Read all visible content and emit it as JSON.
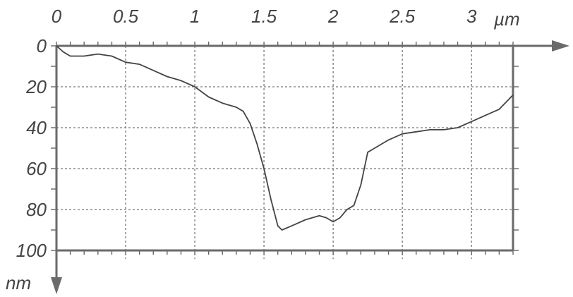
{
  "chart_data": {
    "type": "line",
    "title": "",
    "x_unit": "µm",
    "y_unit": "nm",
    "xlim": [
      0,
      3.3
    ],
    "ylim": [
      0,
      100
    ],
    "y_inverted": true,
    "x_tick_labels": [
      "0",
      "0.5",
      "1",
      "1.5",
      "2",
      "2.5",
      "3"
    ],
    "x_ticks": [
      0,
      0.5,
      1,
      1.5,
      2,
      2.5,
      3
    ],
    "y_tick_labels": [
      "0",
      "20",
      "40",
      "60",
      "80",
      "100"
    ],
    "y_ticks": [
      0,
      20,
      40,
      60,
      80,
      100
    ],
    "grid": true,
    "axis_color": "#6a6a6a",
    "line_color": "#444444",
    "series": [
      {
        "x": [
          0,
          0.05,
          0.1,
          0.2,
          0.3,
          0.4,
          0.5,
          0.6,
          0.7,
          0.8,
          0.9,
          1.0,
          1.1,
          1.2,
          1.3,
          1.35,
          1.4,
          1.45,
          1.5,
          1.55,
          1.6,
          1.63,
          1.7,
          1.8,
          1.85,
          1.9,
          1.95,
          2.0,
          2.05,
          2.1,
          2.15,
          2.2,
          2.25,
          2.3,
          2.4,
          2.5,
          2.6,
          2.7,
          2.8,
          2.9,
          3.0,
          3.1,
          3.2,
          3.3
        ],
        "y": [
          0,
          3,
          5,
          5,
          4,
          5,
          8,
          9,
          12,
          15,
          17,
          20,
          25,
          28,
          30,
          32,
          38,
          48,
          60,
          75,
          88,
          90,
          88,
          85,
          84,
          83,
          84,
          86,
          84,
          80,
          78,
          68,
          52,
          50,
          46,
          43,
          42,
          41,
          41,
          40,
          37,
          34,
          31,
          24
        ]
      }
    ]
  }
}
